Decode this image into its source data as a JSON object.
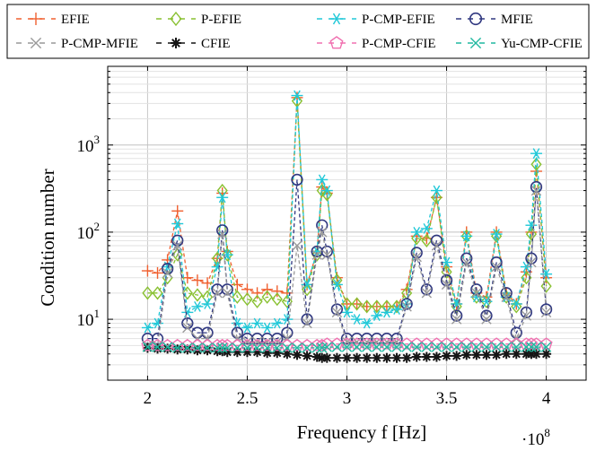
{
  "chart_data": {
    "type": "line",
    "xlabel": "Frequency  f  [Hz]",
    "ylabel": "Condition number",
    "x_multiplier": "·10",
    "x_multiplier_exp": "8",
    "xscale": "linear",
    "yscale": "log",
    "xlim": [
      1.8,
      4.2
    ],
    "ylim": [
      2.0,
      8000
    ],
    "xticks": [
      2,
      2.5,
      3,
      3.5,
      4
    ],
    "xtick_labels": [
      "2",
      "2.5",
      "3",
      "3.5",
      "4"
    ],
    "yticks": [
      10,
      100,
      1000
    ],
    "ytick_labels": [
      "10",
      "10",
      "10"
    ],
    "ytick_exponents": [
      "1",
      "2",
      "3"
    ],
    "grid": true,
    "legend_position": "top",
    "x": [
      2.0,
      2.05,
      2.1,
      2.15,
      2.2,
      2.25,
      2.3,
      2.35,
      2.375,
      2.4,
      2.45,
      2.5,
      2.55,
      2.6,
      2.65,
      2.7,
      2.75,
      2.8,
      2.85,
      2.875,
      2.9,
      2.95,
      3.0,
      3.05,
      3.1,
      3.15,
      3.2,
      3.25,
      3.3,
      3.35,
      3.4,
      3.45,
      3.5,
      3.55,
      3.6,
      3.65,
      3.7,
      3.75,
      3.8,
      3.85,
      3.9,
      3.925,
      3.95,
      4.0
    ],
    "series": [
      {
        "name": "EFIE",
        "color": "#f06030",
        "marker": "plus",
        "values": [
          36,
          34,
          48,
          175,
          30,
          28,
          26,
          50,
          280,
          60,
          25,
          22,
          20,
          22,
          21,
          20,
          3500,
          25,
          60,
          330,
          280,
          30,
          15,
          15,
          14,
          14,
          14,
          14,
          22,
          90,
          85,
          250,
          40,
          15,
          100,
          20,
          18,
          100,
          20,
          15,
          35,
          100,
          500,
          30
        ]
      },
      {
        "name": "P-EFIE",
        "color": "#88c030",
        "marker": "diamond",
        "values": [
          20,
          20,
          30,
          55,
          20,
          19,
          18,
          50,
          300,
          55,
          18,
          17,
          16,
          18,
          17,
          16,
          3200,
          22,
          55,
          300,
          270,
          28,
          15,
          15,
          14,
          14,
          14,
          14,
          20,
          85,
          80,
          250,
          35,
          14,
          90,
          18,
          16,
          90,
          18,
          14,
          30,
          95,
          600,
          24
        ]
      },
      {
        "name": "P-CMP-EFIE",
        "color": "#20c8d8",
        "marker": "asterisk",
        "values": [
          8,
          9,
          40,
          125,
          12,
          14,
          15,
          40,
          250,
          55,
          9,
          8,
          9,
          8,
          9,
          10,
          3700,
          25,
          60,
          400,
          300,
          25,
          12,
          10,
          9,
          11,
          12,
          13,
          15,
          100,
          110,
          300,
          45,
          15,
          90,
          18,
          16,
          95,
          18,
          15,
          40,
          120,
          800,
          33
        ]
      },
      {
        "name": "MFIE",
        "color": "#303880",
        "marker": "circle",
        "values": [
          6,
          6,
          38,
          80,
          9,
          7,
          7,
          22,
          105,
          22,
          7,
          6,
          6,
          6,
          6,
          7,
          400,
          10,
          60,
          120,
          60,
          13,
          6,
          6,
          6,
          6,
          6,
          6,
          15,
          58,
          22,
          80,
          28,
          11,
          50,
          22,
          11,
          45,
          20,
          7,
          12,
          50,
          330,
          13
        ]
      },
      {
        "name": "P-CMP-MFIE",
        "color": "#999999",
        "marker": "cross",
        "values": [
          5.0,
          5.0,
          34,
          70,
          8,
          6,
          6,
          20,
          95,
          20,
          6,
          5.5,
          5.5,
          5.5,
          5.5,
          6,
          70,
          9,
          55,
          100,
          55,
          12,
          5.5,
          5.5,
          5.5,
          5.5,
          5.5,
          5.5,
          14,
          52,
          20,
          70,
          25,
          10,
          45,
          20,
          10,
          40,
          18,
          6,
          11,
          45,
          300,
          12
        ]
      },
      {
        "name": "CFIE",
        "color": "#151515",
        "marker": "star",
        "values": [
          4.7,
          4.6,
          4.6,
          4.5,
          4.5,
          4.4,
          4.4,
          4.3,
          4.3,
          4.2,
          4.2,
          4.2,
          4.2,
          4.1,
          4.1,
          4.0,
          3.9,
          3.8,
          3.7,
          3.6,
          3.6,
          3.6,
          3.6,
          3.6,
          3.6,
          3.6,
          3.6,
          3.6,
          3.6,
          3.7,
          3.7,
          3.7,
          3.8,
          3.8,
          3.9,
          3.9,
          3.9,
          3.9,
          4.0,
          4.0,
          4.0,
          4.0,
          4.0,
          4.0
        ]
      },
      {
        "name": "P-CMP-CFIE",
        "color": "#f070b0",
        "marker": "pentagon",
        "values": [
          5.0,
          5.0,
          5.0,
          5.0,
          5.0,
          5.0,
          5.0,
          5.0,
          5.0,
          5.0,
          5.0,
          5.0,
          5.0,
          5.0,
          5.0,
          5.0,
          5.0,
          5.0,
          5.0,
          5.0,
          5.2,
          5.2,
          5.2,
          5.2,
          5.2,
          5.2,
          5.2,
          5.2,
          5.2,
          5.2,
          5.2,
          5.2,
          5.2,
          5.2,
          5.2,
          5.2,
          5.2,
          5.2,
          5.2,
          5.2,
          5.2,
          5.2,
          5.2,
          5.2
        ]
      },
      {
        "name": "Yu-CMP-CFIE",
        "color": "#20b8a0",
        "marker": "xcross",
        "values": [
          4.8,
          4.8,
          4.8,
          4.7,
          4.7,
          4.7,
          4.7,
          4.7,
          4.7,
          4.7,
          4.7,
          4.7,
          4.7,
          4.7,
          4.7,
          4.7,
          4.7,
          4.7,
          4.7,
          4.7,
          4.8,
          4.8,
          4.8,
          4.8,
          4.8,
          4.8,
          4.8,
          4.8,
          4.8,
          4.8,
          4.8,
          4.8,
          4.8,
          4.8,
          4.8,
          4.8,
          4.8,
          4.8,
          4.8,
          4.8,
          4.8,
          4.8,
          4.8,
          4.8
        ]
      }
    ]
  }
}
